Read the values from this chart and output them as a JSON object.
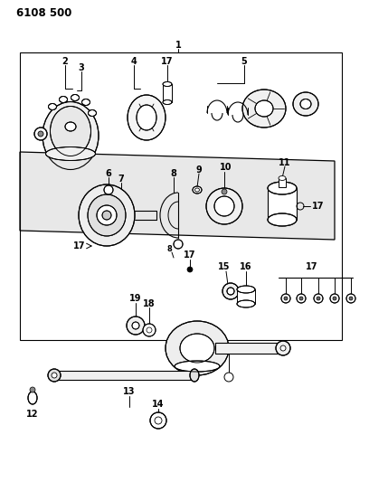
{
  "title": "6108 500",
  "bg_color": "#ffffff",
  "line_color": "#000000",
  "fig_width": 4.08,
  "fig_height": 5.33,
  "dpi": 100
}
